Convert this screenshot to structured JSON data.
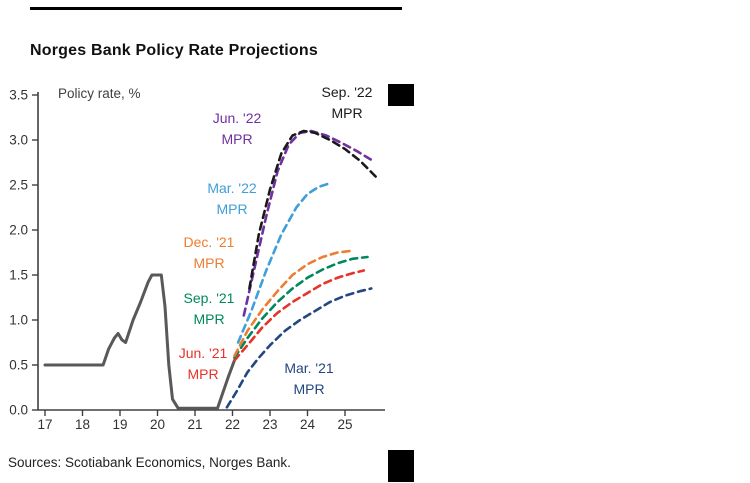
{
  "window": {
    "sources_text": "Sources: Scotiabank Economics, Norges Bank."
  },
  "chart_data": {
    "type": "line",
    "title": "Norges Bank Policy Rate Projections",
    "ylabel_inside": "Policy rate, %",
    "x_ticks": [
      "17",
      "18",
      "19",
      "20",
      "21",
      "22",
      "23",
      "24",
      "25"
    ],
    "y_ticks": [
      "0.0",
      "0.5",
      "1.0",
      "1.5",
      "2.0",
      "2.5",
      "3.0",
      "3.5"
    ],
    "xlim": [
      16.85,
      26.2
    ],
    "ylim": [
      0,
      3.5
    ],
    "grid": false,
    "legend_position": "inline-annotations",
    "series": [
      {
        "name": "Policy rate (historical)",
        "color": "#595959",
        "dashed": false,
        "width": 3,
        "points": [
          [
            17.0,
            0.5
          ],
          [
            18.55,
            0.5
          ],
          [
            18.7,
            0.68
          ],
          [
            18.85,
            0.8
          ],
          [
            18.95,
            0.85
          ],
          [
            19.05,
            0.78
          ],
          [
            19.15,
            0.75
          ],
          [
            19.35,
            1.0
          ],
          [
            19.55,
            1.2
          ],
          [
            19.75,
            1.42
          ],
          [
            19.85,
            1.5
          ],
          [
            20.1,
            1.5
          ],
          [
            20.2,
            1.15
          ],
          [
            20.3,
            0.5
          ],
          [
            20.4,
            0.12
          ],
          [
            20.55,
            0.02
          ],
          [
            21.6,
            0.02
          ],
          [
            21.75,
            0.2
          ],
          [
            21.9,
            0.38
          ],
          [
            22.05,
            0.55
          ]
        ]
      },
      {
        "name": "Mar. '21 MPR",
        "color": "#24477f",
        "dashed": true,
        "width": 2.6,
        "points": [
          [
            21.85,
            0.03
          ],
          [
            22.1,
            0.2
          ],
          [
            22.4,
            0.42
          ],
          [
            22.7,
            0.58
          ],
          [
            23.0,
            0.72
          ],
          [
            23.4,
            0.88
          ],
          [
            23.8,
            1.0
          ],
          [
            24.2,
            1.1
          ],
          [
            24.6,
            1.2
          ],
          [
            25.0,
            1.27
          ],
          [
            25.4,
            1.32
          ],
          [
            25.7,
            1.35
          ]
        ]
      },
      {
        "name": "Jun. '21 MPR",
        "color": "#e63329",
        "dashed": true,
        "width": 2.6,
        "points": [
          [
            22.05,
            0.55
          ],
          [
            22.4,
            0.72
          ],
          [
            22.8,
            0.92
          ],
          [
            23.2,
            1.08
          ],
          [
            23.6,
            1.2
          ],
          [
            24.0,
            1.3
          ],
          [
            24.4,
            1.4
          ],
          [
            24.8,
            1.47
          ],
          [
            25.2,
            1.52
          ],
          [
            25.5,
            1.55
          ]
        ]
      },
      {
        "name": "Sep. '21 MPR",
        "color": "#00885d",
        "dashed": true,
        "width": 2.6,
        "points": [
          [
            22.05,
            0.58
          ],
          [
            22.4,
            0.8
          ],
          [
            22.8,
            1.02
          ],
          [
            23.2,
            1.2
          ],
          [
            23.6,
            1.35
          ],
          [
            24.0,
            1.47
          ],
          [
            24.4,
            1.56
          ],
          [
            24.8,
            1.63
          ],
          [
            25.2,
            1.68
          ],
          [
            25.6,
            1.7
          ]
        ]
      },
      {
        "name": "Dec. '21 MPR",
        "color": "#ed7d31",
        "dashed": true,
        "width": 2.6,
        "points": [
          [
            22.05,
            0.6
          ],
          [
            22.4,
            0.88
          ],
          [
            22.8,
            1.12
          ],
          [
            23.2,
            1.32
          ],
          [
            23.6,
            1.5
          ],
          [
            24.0,
            1.62
          ],
          [
            24.4,
            1.7
          ],
          [
            24.8,
            1.75
          ],
          [
            25.2,
            1.77
          ]
        ]
      },
      {
        "name": "Mar. '22 MPR",
        "color": "#3f9fd8",
        "dashed": true,
        "width": 2.6,
        "points": [
          [
            22.15,
            0.75
          ],
          [
            22.5,
            1.1
          ],
          [
            22.9,
            1.55
          ],
          [
            23.3,
            1.95
          ],
          [
            23.7,
            2.25
          ],
          [
            24.0,
            2.4
          ],
          [
            24.3,
            2.48
          ],
          [
            24.6,
            2.52
          ]
        ]
      },
      {
        "name": "Jun. '22 MPR",
        "color": "#7030a0",
        "dashed": true,
        "width": 2.6,
        "points": [
          [
            22.3,
            1.05
          ],
          [
            22.6,
            1.6
          ],
          [
            22.9,
            2.15
          ],
          [
            23.2,
            2.65
          ],
          [
            23.5,
            2.95
          ],
          [
            23.8,
            3.08
          ],
          [
            24.1,
            3.1
          ],
          [
            24.5,
            3.05
          ],
          [
            24.9,
            2.97
          ],
          [
            25.3,
            2.88
          ],
          [
            25.7,
            2.78
          ]
        ]
      },
      {
        "name": "Sep. '22 MPR",
        "color": "#1a1a1a",
        "dashed": true,
        "width": 2.6,
        "points": [
          [
            22.45,
            1.35
          ],
          [
            22.7,
            1.95
          ],
          [
            23.0,
            2.45
          ],
          [
            23.3,
            2.85
          ],
          [
            23.6,
            3.05
          ],
          [
            23.9,
            3.1
          ],
          [
            24.2,
            3.08
          ],
          [
            24.6,
            3.0
          ],
          [
            25.0,
            2.9
          ],
          [
            25.4,
            2.77
          ],
          [
            25.85,
            2.58
          ]
        ]
      }
    ],
    "annotations": [
      {
        "line1": "Sep. '22",
        "line2": "MPR",
        "color": "#1a1a1a"
      },
      {
        "line1": "Jun. '22",
        "line2": "MPR",
        "color": "#7030a0"
      },
      {
        "line1": "Mar. '22",
        "line2": "MPR",
        "color": "#3f9fd8"
      },
      {
        "line1": "Dec. '21",
        "line2": "MPR",
        "color": "#ed7d31"
      },
      {
        "line1": "Sep. '21",
        "line2": "MPR",
        "color": "#00885d"
      },
      {
        "line1": "Jun. '21",
        "line2": "MPR",
        "color": "#e63329"
      },
      {
        "line1": "Mar. '21",
        "line2": "MPR",
        "color": "#24477f"
      }
    ]
  }
}
